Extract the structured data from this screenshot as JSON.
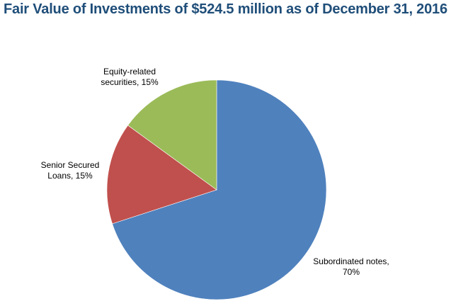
{
  "chart_data": {
    "type": "pie",
    "title": "Fair Value of Investments of $524.5 million as of December 31, 2016",
    "slices": [
      {
        "name": "Subordinated notes",
        "value": 70,
        "label_lines": [
          "Subordinated notes,",
          "70%"
        ],
        "color": "#4F81BD"
      },
      {
        "name": "Senior Secured Loans",
        "value": 15,
        "label_lines": [
          "Senior Secured",
          "Loans, 15%"
        ],
        "color": "#C0504D"
      },
      {
        "name": "Equity-related securities",
        "value": 15,
        "label_lines": [
          "Equity-related",
          "securities, 15%"
        ],
        "color": "#9BBB59"
      }
    ],
    "start_angle_deg": 0,
    "direction": "clockwise",
    "legend": "none"
  }
}
